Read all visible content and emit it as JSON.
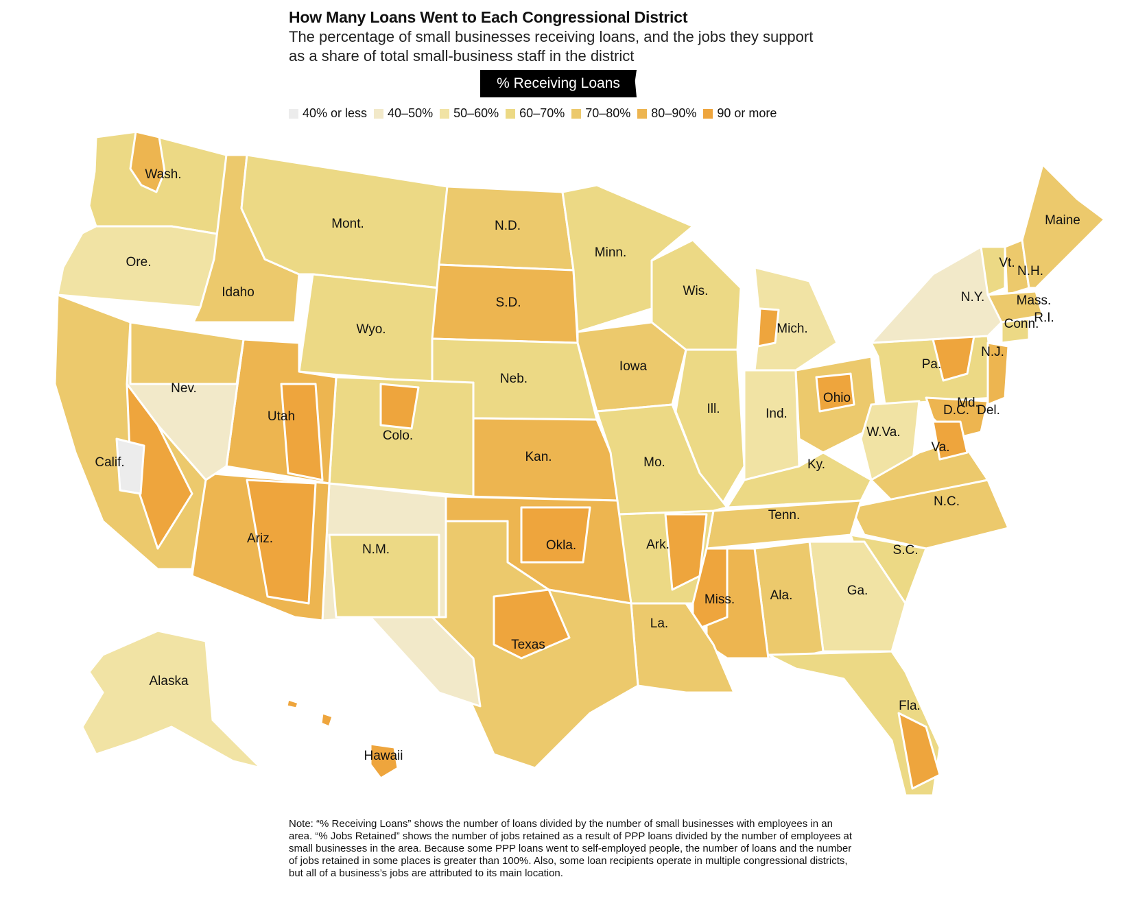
{
  "header": {
    "title": "How Many Loans Went to Each Congressional District",
    "subtitle_line1": "The percentage of small businesses receiving loans, and the jobs they support",
    "subtitle_line2": "as a share of total small-business staff in the district",
    "toggle_label": "% Receiving Loans"
  },
  "legend": [
    {
      "label": "40% or less",
      "color": "#ececec"
    },
    {
      "label": "40–50%",
      "color": "#f2e9c9"
    },
    {
      "label": "50–60%",
      "color": "#f1e3a4"
    },
    {
      "label": "60–70%",
      "color": "#ecd985"
    },
    {
      "label": "70–80%",
      "color": "#ecc96c"
    },
    {
      "label": "80–90%",
      "color": "#edb550"
    },
    {
      "label": "90 or more",
      "color": "#eea53d"
    }
  ],
  "colors": {
    "c1": "#ececec",
    "c2": "#f2e9c9",
    "c3": "#f1e3a4",
    "c4": "#ecd985",
    "c5": "#ecc96c",
    "c6": "#edb550",
    "c7": "#eea53d",
    "border": "#ffffff"
  },
  "states": {
    "wash": "Wash.",
    "ore": "Ore.",
    "idaho": "Idaho",
    "mont": "Mont.",
    "wyo": "Wyo.",
    "nd": "N.D.",
    "sd": "S.D.",
    "neb": "Neb.",
    "minn": "Minn.",
    "iowa": "Iowa",
    "wis": "Wis.",
    "mich": "Mich.",
    "ill": "Ill.",
    "ind": "Ind.",
    "ohio": "Ohio",
    "pa": "Pa.",
    "ny": "N.Y.",
    "vt": "Vt.",
    "nh": "N.H.",
    "maine": "Maine",
    "mass": "Mass.",
    "ri": "R.I.",
    "conn": "Conn.",
    "nj": "N.J.",
    "md": "Md.",
    "dc": "D.C.",
    "del": "Del.",
    "wva": "W.Va.",
    "va": "Va.",
    "ky": "Ky.",
    "nc": "N.C.",
    "tenn": "Tenn.",
    "sc": "S.C.",
    "ga": "Ga.",
    "ala": "Ala.",
    "miss": "Miss.",
    "fla": "Fla.",
    "la": "La.",
    "ark": "Ark.",
    "mo": "Mo.",
    "kan": "Kan.",
    "okla": "Okla.",
    "texas": "Texas",
    "nm": "N.M.",
    "colo": "Colo.",
    "utah": "Utah",
    "ariz": "Ariz.",
    "nev": "Nev.",
    "calif": "Calif.",
    "alaska": "Alaska",
    "hawaii": "Hawaii"
  },
  "note": "Note: “% Receiving Loans” shows the number of  loans divided by the number of small businesses with employees in an area. “% Jobs Retained” shows the number of jobs retained as a result of PPP loans divided by the number of employees at small businesses in the area. Because some PPP loans went to self-employed people, the number of loans and the number of jobs retained in some places is greater than 100%. Also, some loan recipients operate in multiple congressional districts, but all of a business’s jobs are attributed to its main location."
}
